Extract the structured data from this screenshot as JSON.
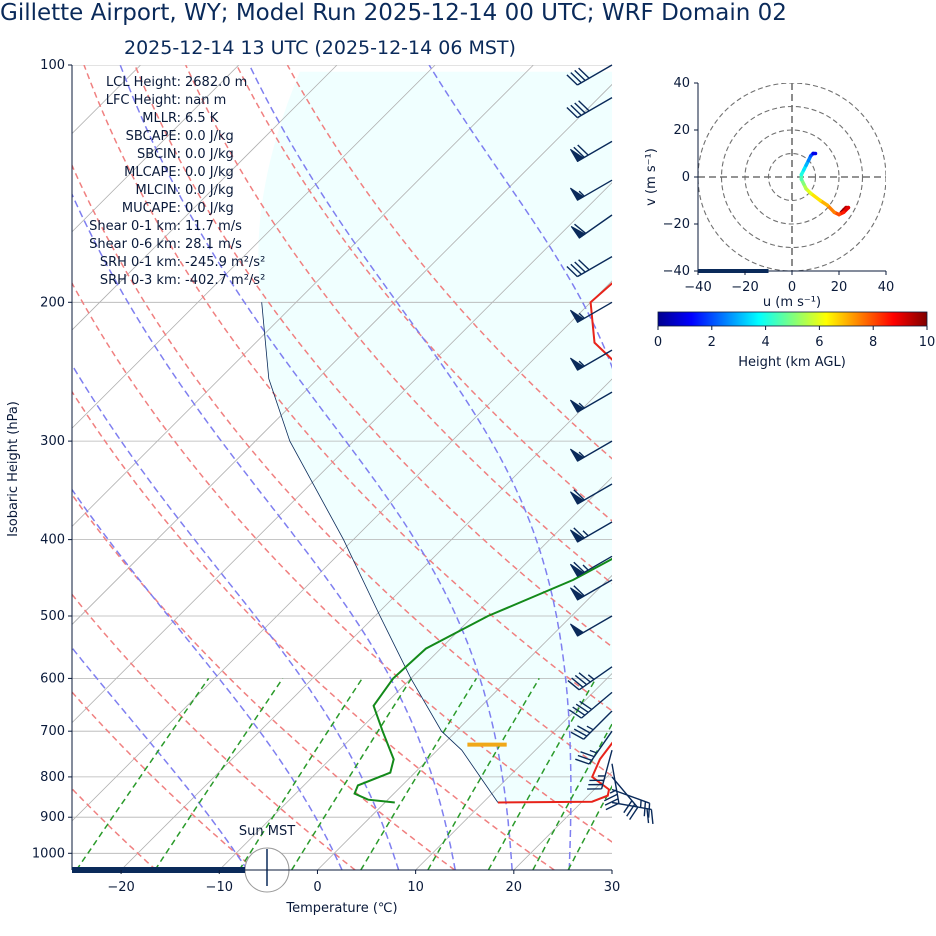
{
  "header": {
    "title": "Gillette  Airport, WY; Model Run 2025-12-14 00 UTC; WRF Domain 02",
    "subtitle": "2025-12-14 13 UTC  (2025-12-14 06 MST)"
  },
  "indices": [
    {
      "label": "LCL Height:",
      "value": "2682.0 m"
    },
    {
      "label": "LFC Height:",
      "value": "nan m"
    },
    {
      "label": "MLLR:",
      "value": "6.5 K"
    },
    {
      "label": "SBCAPE:",
      "value": "0.0 J/kg"
    },
    {
      "label": "SBCIN:",
      "value": "0.0 J/kg"
    },
    {
      "label": "MLCAPE:",
      "value": "0.0 J/kg"
    },
    {
      "label": "MLCIN:",
      "value": "0.0 J/kg"
    },
    {
      "label": "MUCAPE:",
      "value": "0.0 J/kg"
    },
    {
      "label": "Shear 0-1 km:",
      "value": "11.7 m/s"
    },
    {
      "label": "Shear 0-6 km:",
      "value": "28.1 m/s"
    },
    {
      "label": "SRH 0-1 km:",
      "value": "-245.9 m²/s²"
    },
    {
      "label": "SRH 0-3 km:",
      "value": "-402.7 m²/s²"
    }
  ],
  "sun_label": "Sun MST",
  "colors": {
    "temperature": "#e8231a",
    "dewpoint": "#138a1a",
    "dry_adiabat": "#f08080",
    "moist_adiabat": "#7f7ff0",
    "mixing_ratio": "#2a9a2a",
    "isotherm": "#b0b0b0",
    "cape_fill": "#f0ffff",
    "navy": "#0a2a5a",
    "freezing_marker": "#f0a818"
  },
  "chart_data": [
    {
      "type": "line",
      "kind": "skew-t",
      "xlabel": "Temperature (℃)",
      "ylabel": "Isobaric Height (hPa)",
      "xlim": [
        -25,
        30
      ],
      "ylim": [
        1050,
        100
      ],
      "log_y": true,
      "x_ticks": [
        -20,
        -10,
        0,
        10,
        20,
        30
      ],
      "x_tick_labels": [
        "−20",
        "−10",
        "0",
        "10",
        "20",
        "30"
      ],
      "y_ticks": [
        1000,
        900,
        800,
        700,
        600,
        500,
        400,
        300,
        200,
        100
      ],
      "series": [
        {
          "id": "temperature",
          "points": [
            [
              862,
              11.5
            ],
            [
              860,
              21.0
            ],
            [
              845,
              22.0
            ],
            [
              830,
              21.5
            ],
            [
              800,
              18.5
            ],
            [
              760,
              17.5
            ],
            [
              700,
              16.8
            ],
            [
              650,
              16.5
            ],
            [
              600,
              15.7
            ],
            [
              550,
              13.5
            ],
            [
              500,
              10.5
            ],
            [
              450,
              7.5
            ],
            [
              400,
              4.0
            ],
            [
              350,
              -0.5
            ],
            [
              320,
              -4.5
            ],
            [
              300,
              -7.0
            ],
            [
              275,
              -12.5
            ],
            [
              250,
              -18.0
            ],
            [
              225,
              -25.5
            ],
            [
              200,
              -30.0
            ],
            [
              180,
              -29.5
            ],
            [
              160,
              -28.0
            ],
            [
              150,
              -27.0
            ],
            [
              130,
              -22.5
            ],
            [
              115,
              -15.0
            ],
            [
              100,
              -8.0
            ]
          ]
        },
        {
          "id": "dewpoint",
          "points": [
            [
              862,
              1.0
            ],
            [
              855,
              -2.0
            ],
            [
              840,
              -4.0
            ],
            [
              820,
              -4.5
            ],
            [
              790,
              -2.5
            ],
            [
              760,
              -3.5
            ],
            [
              700,
              -7.5
            ],
            [
              650,
              -11.0
            ],
            [
              600,
              -11.8
            ],
            [
              550,
              -11.5
            ],
            [
              500,
              -8.5
            ],
            [
              450,
              -3.5
            ],
            [
              400,
              0.0
            ],
            [
              350,
              -3.0
            ],
            [
              320,
              -5.5
            ],
            [
              300,
              -10.5
            ],
            [
              275,
              -14.0
            ],
            [
              250,
              -18.0
            ],
            [
              225,
              -22.0
            ],
            [
              200,
              -25.5
            ],
            [
              180,
              -27.0
            ],
            [
              160,
              -29.0
            ],
            [
              150,
              -30.0
            ],
            [
              130,
              -29.0
            ],
            [
              115,
              -27.5
            ],
            [
              100,
              -26.5
            ]
          ]
        }
      ],
      "parcel_profile": [
        [
          862,
          11.5
        ],
        [
          740,
          2.5
        ],
        [
          700,
          -1.5
        ],
        [
          600,
          -10.0
        ],
        [
          500,
          -19.5
        ],
        [
          400,
          -31.0
        ],
        [
          300,
          -46.5
        ],
        [
          250,
          -55.0
        ],
        [
          200,
          -63.5
        ]
      ],
      "freezing_level": {
        "pressure": 728,
        "temperature_range": [
          2.5,
          6.5
        ]
      },
      "dry_adiabats_theta_C": [
        -30,
        -20,
        -10,
        0,
        10,
        20,
        30,
        40,
        50,
        60,
        70,
        80,
        90
      ],
      "moist_adiabats_theta_w_C": [
        -10,
        0,
        6,
        12,
        18,
        24,
        30
      ],
      "mixing_ratios_g_per_kg": [
        0.5,
        1,
        2,
        3,
        5,
        8,
        12,
        16,
        20
      ],
      "wind_barbs": [
        {
          "p": 862,
          "speed_kt": 20,
          "dir_deg": 100
        },
        {
          "p": 830,
          "speed_kt": 25,
          "dir_deg": 110
        },
        {
          "p": 800,
          "speed_kt": 30,
          "dir_deg": 140
        },
        {
          "p": 770,
          "speed_kt": 35,
          "dir_deg": 170
        },
        {
          "p": 740,
          "speed_kt": 35,
          "dir_deg": 195
        },
        {
          "p": 700,
          "speed_kt": 35,
          "dir_deg": 215
        },
        {
          "p": 660,
          "speed_kt": 35,
          "dir_deg": 225
        },
        {
          "p": 625,
          "speed_kt": 40,
          "dir_deg": 230
        },
        {
          "p": 580,
          "speed_kt": 45,
          "dir_deg": 235
        },
        {
          "p": 500,
          "speed_kt": 50,
          "dir_deg": 240
        },
        {
          "p": 450,
          "speed_kt": 60,
          "dir_deg": 240
        },
        {
          "p": 420,
          "speed_kt": 65,
          "dir_deg": 240
        },
        {
          "p": 380,
          "speed_kt": 65,
          "dir_deg": 240
        },
        {
          "p": 340,
          "speed_kt": 60,
          "dir_deg": 240
        },
        {
          "p": 300,
          "speed_kt": 55,
          "dir_deg": 240
        },
        {
          "p": 260,
          "speed_kt": 55,
          "dir_deg": 240
        },
        {
          "p": 230,
          "speed_kt": 55,
          "dir_deg": 240
        },
        {
          "p": 200,
          "speed_kt": 55,
          "dir_deg": 240
        },
        {
          "p": 175,
          "speed_kt": 40,
          "dir_deg": 240
        },
        {
          "p": 155,
          "speed_kt": 60,
          "dir_deg": 235
        },
        {
          "p": 140,
          "speed_kt": 55,
          "dir_deg": 240
        },
        {
          "p": 125,
          "speed_kt": 70,
          "dir_deg": 240
        },
        {
          "p": 110,
          "speed_kt": 40,
          "dir_deg": 240
        },
        {
          "p": 100,
          "speed_kt": 40,
          "dir_deg": 240
        }
      ]
    },
    {
      "type": "line",
      "kind": "hodograph",
      "xlabel": "u (m s⁻¹)",
      "ylabel": "v (m s⁻¹)",
      "xlim": [
        -40,
        40
      ],
      "ylim": [
        -40,
        40
      ],
      "ticks": [
        -40,
        -20,
        0,
        20,
        40
      ],
      "tick_labels": [
        "−40",
        "−20",
        "0",
        "20",
        "40"
      ],
      "rings": [
        10,
        20,
        30,
        40
      ],
      "points": [
        [
          21,
          -15
        ],
        [
          22,
          -14
        ],
        [
          23,
          -13
        ],
        [
          24,
          -13
        ],
        [
          22,
          -15
        ],
        [
          20,
          -16
        ],
        [
          18,
          -15
        ],
        [
          15,
          -12
        ],
        [
          12,
          -10
        ],
        [
          8,
          -7
        ],
        [
          6,
          -5
        ],
        [
          5,
          -3
        ],
        [
          4,
          -1
        ],
        [
          4,
          1
        ],
        [
          5,
          3
        ],
        [
          6,
          5
        ],
        [
          7,
          7
        ],
        [
          8,
          9
        ],
        [
          9,
          10
        ],
        [
          10,
          10
        ]
      ],
      "heights_km": [
        0.0,
        0.3,
        0.6,
        1.0,
        1.5,
        2.0,
        2.5,
        3.0,
        3.5,
        4.0,
        4.5,
        5.0,
        5.5,
        6.0,
        6.5,
        7.0,
        7.5,
        8.0,
        9.0,
        10.0
      ]
    },
    {
      "type": "heatmap",
      "kind": "colorbar",
      "label": "Height (km AGL)",
      "range": [
        0,
        10
      ],
      "ticks": [
        0,
        2,
        4,
        6,
        8,
        10
      ],
      "tick_labels": [
        "0",
        "2",
        "4",
        "6",
        "8",
        "10"
      ],
      "colormap": "jet"
    }
  ]
}
